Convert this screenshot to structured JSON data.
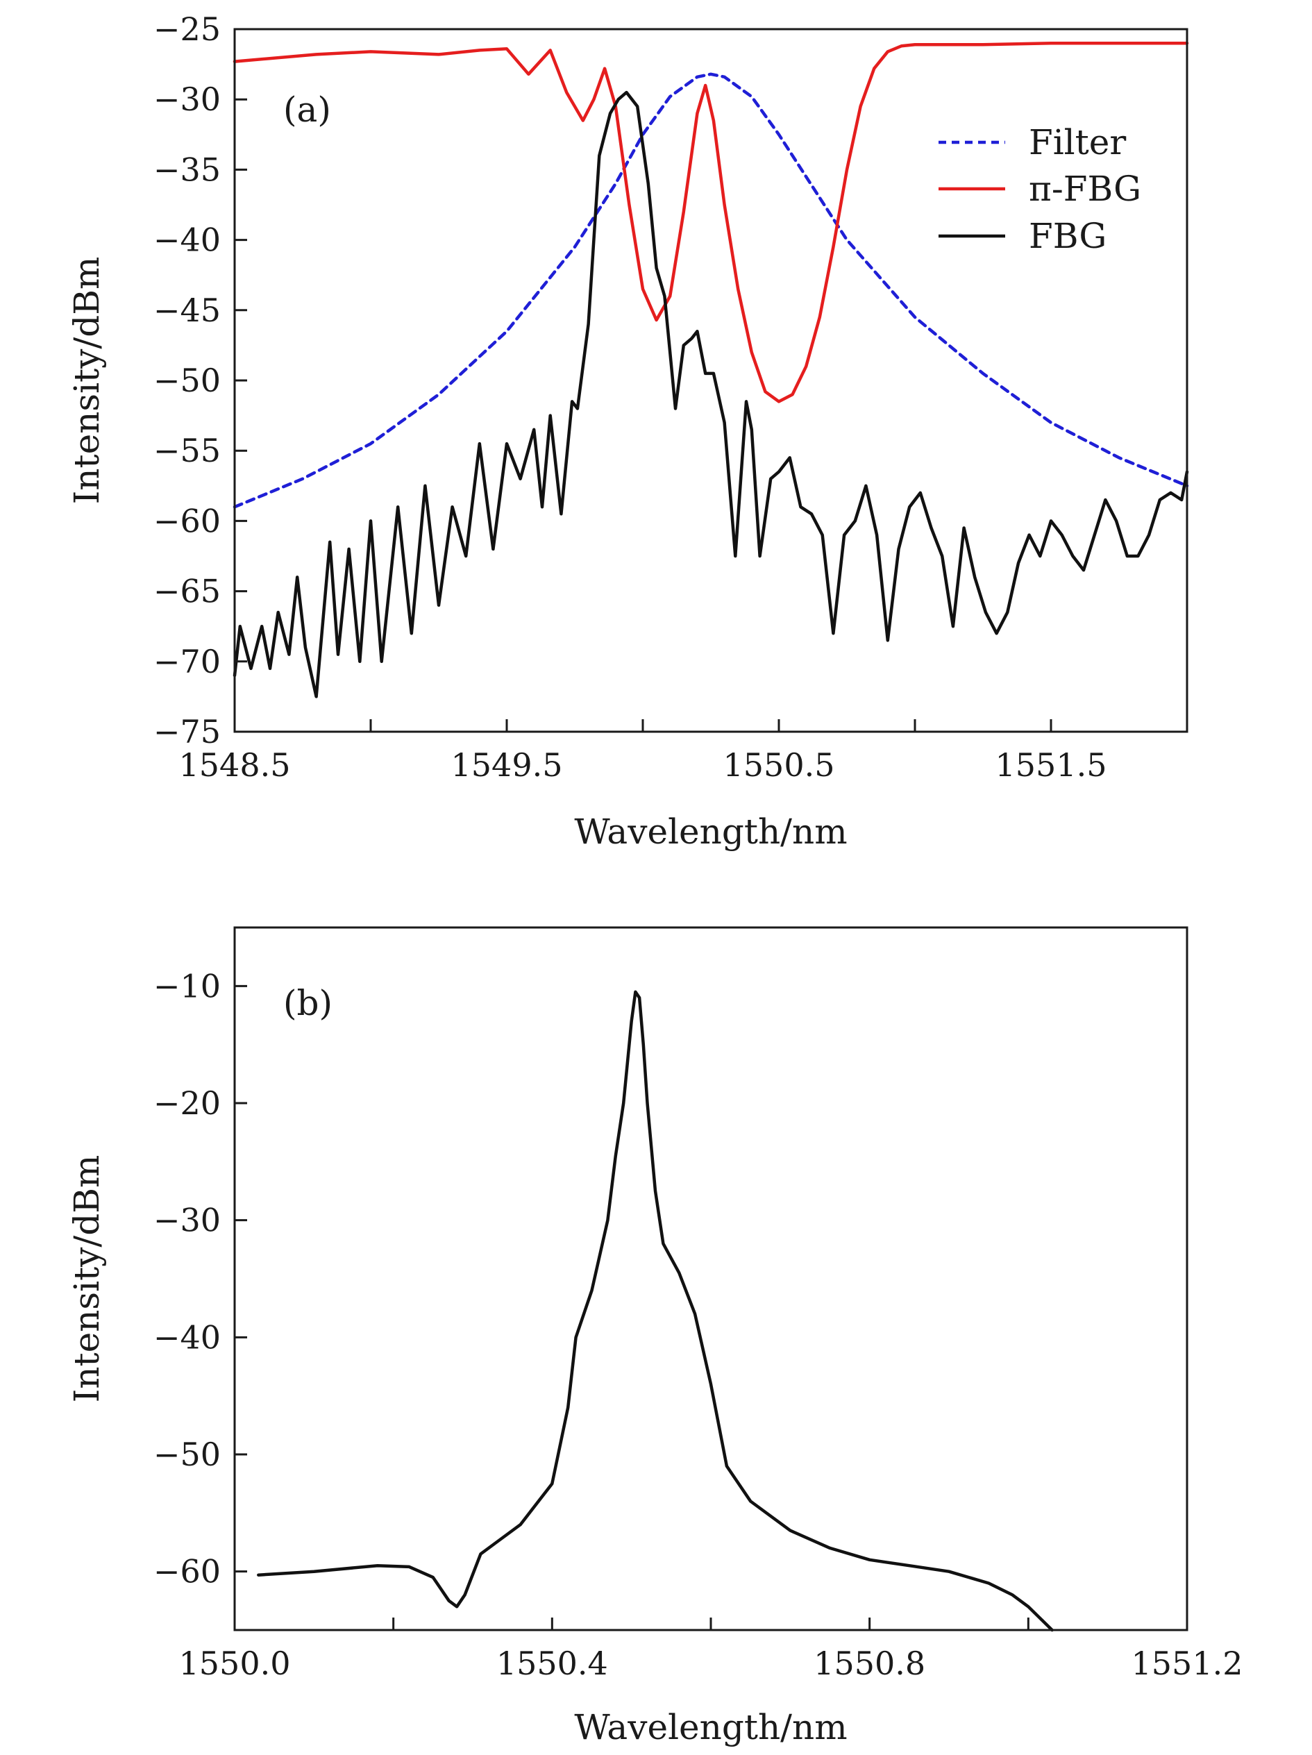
{
  "chart_data": [
    {
      "type": "line",
      "panel_label": "(a)",
      "xlabel": "Wavelength/nm",
      "ylabel": "Intensity/dBm",
      "xlim": [
        1548.5,
        1552.0
      ],
      "ylim": [
        -75,
        -25
      ],
      "xticks": [
        1548.5,
        1549.0,
        1549.5,
        1550.0,
        1550.5,
        1551.0,
        1551.5
      ],
      "xtick_labels": [
        "1548.5",
        "",
        "1549.5",
        "",
        "1550.5",
        "",
        "1551.5"
      ],
      "yticks": [
        -75,
        -70,
        -65,
        -60,
        -55,
        -50,
        -45,
        -40,
        -35,
        -30,
        -25
      ],
      "ytick_labels": [
        "−75",
        "−70",
        "−65",
        "−60",
        "−55",
        "−50",
        "−45",
        "−40",
        "−35",
        "−30",
        "−25"
      ],
      "legend_position": "top-right",
      "series": [
        {
          "name": "Filter",
          "color": "#1f1fd6",
          "style": "dashed",
          "x": [
            1548.5,
            1548.75,
            1549.0,
            1549.25,
            1549.5,
            1549.75,
            1549.9,
            1550.0,
            1550.1,
            1550.2,
            1550.25,
            1550.3,
            1550.4,
            1550.5,
            1550.6,
            1550.75,
            1551.0,
            1551.25,
            1551.5,
            1551.75,
            1552.0
          ],
          "y": [
            -59.0,
            -57.0,
            -54.5,
            -51.0,
            -46.5,
            -40.5,
            -36.0,
            -32.5,
            -29.8,
            -28.4,
            -28.2,
            -28.4,
            -29.8,
            -32.5,
            -35.5,
            -40.0,
            -45.5,
            -49.5,
            -53.0,
            -55.5,
            -57.5
          ]
        },
        {
          "name": "π-FBG",
          "color": "#e51e1e",
          "style": "solid",
          "x": [
            1548.5,
            1548.8,
            1549.0,
            1549.25,
            1549.4,
            1549.5,
            1549.58,
            1549.66,
            1549.72,
            1549.78,
            1549.82,
            1549.86,
            1549.9,
            1549.95,
            1550.0,
            1550.05,
            1550.1,
            1550.15,
            1550.2,
            1550.23,
            1550.26,
            1550.3,
            1550.35,
            1550.4,
            1550.45,
            1550.5,
            1550.55,
            1550.6,
            1550.65,
            1550.7,
            1550.75,
            1550.8,
            1550.85,
            1550.9,
            1550.95,
            1551.0,
            1551.1,
            1551.25,
            1551.5,
            1551.75,
            1552.0
          ],
          "y": [
            -27.3,
            -26.8,
            -26.6,
            -26.8,
            -26.5,
            -26.4,
            -28.2,
            -26.5,
            -29.5,
            -31.5,
            -30.0,
            -27.8,
            -30.5,
            -37.5,
            -43.5,
            -45.7,
            -44.0,
            -38.0,
            -31.0,
            -29.0,
            -31.5,
            -37.5,
            -43.5,
            -48.0,
            -50.8,
            -51.5,
            -51.0,
            -49.0,
            -45.5,
            -40.5,
            -35.0,
            -30.5,
            -27.8,
            -26.6,
            -26.2,
            -26.1,
            -26.1,
            -26.1,
            -26.0,
            -26.0,
            -26.0
          ]
        },
        {
          "name": "FBG",
          "color": "#111111",
          "style": "solid",
          "x": [
            1548.5,
            1548.52,
            1548.56,
            1548.6,
            1548.63,
            1548.66,
            1548.7,
            1548.73,
            1548.76,
            1548.8,
            1548.85,
            1548.88,
            1548.92,
            1548.96,
            1549.0,
            1549.04,
            1549.1,
            1549.15,
            1549.2,
            1549.25,
            1549.3,
            1549.35,
            1549.4,
            1549.45,
            1549.5,
            1549.55,
            1549.6,
            1549.63,
            1549.66,
            1549.7,
            1549.74,
            1549.76,
            1549.8,
            1549.82,
            1549.84,
            1549.88,
            1549.91,
            1549.94,
            1549.98,
            1550.02,
            1550.05,
            1550.08,
            1550.1,
            1550.12,
            1550.15,
            1550.18,
            1550.2,
            1550.23,
            1550.26,
            1550.3,
            1550.34,
            1550.38,
            1550.4,
            1550.43,
            1550.47,
            1550.5,
            1550.54,
            1550.58,
            1550.62,
            1550.66,
            1550.7,
            1550.74,
            1550.78,
            1550.82,
            1550.86,
            1550.9,
            1550.94,
            1550.98,
            1551.02,
            1551.06,
            1551.1,
            1551.14,
            1551.18,
            1551.22,
            1551.26,
            1551.3,
            1551.34,
            1551.38,
            1551.42,
            1551.46,
            1551.5,
            1551.54,
            1551.58,
            1551.62,
            1551.66,
            1551.7,
            1551.74,
            1551.78,
            1551.82,
            1551.86,
            1551.9,
            1551.94,
            1551.98,
            1552.0
          ],
          "y": [
            -71.0,
            -67.5,
            -70.5,
            -67.5,
            -70.5,
            -66.5,
            -69.5,
            -64.0,
            -69.0,
            -72.5,
            -61.5,
            -69.5,
            -62.0,
            -70.0,
            -60.0,
            -70.0,
            -59.0,
            -68.0,
            -57.5,
            -66.0,
            -59.0,
            -62.5,
            -54.5,
            -62.0,
            -54.5,
            -57.0,
            -53.5,
            -59.0,
            -52.5,
            -59.5,
            -51.5,
            -52.0,
            -46.0,
            -40.0,
            -34.0,
            -31.0,
            -30.0,
            -29.5,
            -30.5,
            -36.0,
            -42.0,
            -44.0,
            -48.0,
            -52.0,
            -47.5,
            -47.0,
            -46.5,
            -49.5,
            -49.5,
            -53.0,
            -62.5,
            -51.5,
            -53.5,
            -62.5,
            -57.0,
            -56.5,
            -55.5,
            -59.0,
            -59.5,
            -61.0,
            -68.0,
            -61.0,
            -60.0,
            -57.5,
            -61.0,
            -68.5,
            -62.0,
            -59.0,
            -58.0,
            -60.5,
            -62.5,
            -67.5,
            -60.5,
            -64.0,
            -66.5,
            -68.0,
            -66.5,
            -63.0,
            -61.0,
            -62.5,
            -60.0,
            -61.0,
            -62.5,
            -63.5,
            -61.0,
            -58.5,
            -60.0,
            -62.5,
            -62.5,
            -61.0,
            -58.5,
            -58.0,
            -58.5,
            -56.5
          ]
        }
      ]
    },
    {
      "type": "line",
      "panel_label": "(b)",
      "xlabel": "Wavelength/nm",
      "ylabel": "Intensity/dBm",
      "xlim": [
        1550.0,
        1551.2
      ],
      "ylim": [
        -65,
        -5
      ],
      "xticks": [
        1550.0,
        1550.2,
        1550.4,
        1550.6,
        1550.8,
        1551.0,
        1551.2
      ],
      "xtick_labels": [
        "1550.0",
        "",
        "1550.4",
        "",
        "1550.8",
        "",
        "1551.2"
      ],
      "yticks": [
        -60,
        -50,
        -40,
        -30,
        -20,
        -10
      ],
      "ytick_labels": [
        "−60",
        "−50",
        "−40",
        "−30",
        "−20",
        "−10"
      ],
      "series": [
        {
          "color": "#111111",
          "style": "solid",
          "x": [
            1550.03,
            1550.1,
            1550.18,
            1550.22,
            1550.25,
            1550.27,
            1550.28,
            1550.29,
            1550.31,
            1550.33,
            1550.36,
            1550.4,
            1550.42,
            1550.43,
            1550.45,
            1550.47,
            1550.48,
            1550.49,
            1550.5,
            1550.505,
            1550.51,
            1550.515,
            1550.52,
            1550.53,
            1550.54,
            1550.56,
            1550.58,
            1550.6,
            1550.62,
            1550.65,
            1550.7,
            1550.75,
            1550.8,
            1550.85,
            1550.9,
            1550.95,
            1550.98,
            1551.0,
            1551.03
          ],
          "y": [
            -60.3,
            -60.0,
            -59.5,
            -59.6,
            -60.5,
            -62.5,
            -63.0,
            -62.0,
            -58.5,
            -57.5,
            -56.0,
            -52.5,
            -46.0,
            -40.0,
            -36.0,
            -30.0,
            -24.5,
            -20.0,
            -13.0,
            -10.5,
            -11.0,
            -15.0,
            -20.0,
            -27.5,
            -32.0,
            -34.5,
            -38.0,
            -44.0,
            -51.0,
            -54.0,
            -56.5,
            -58.0,
            -59.0,
            -59.5,
            -60.0,
            -61.0,
            -62.0,
            -63.0,
            -65.0
          ]
        }
      ]
    }
  ]
}
